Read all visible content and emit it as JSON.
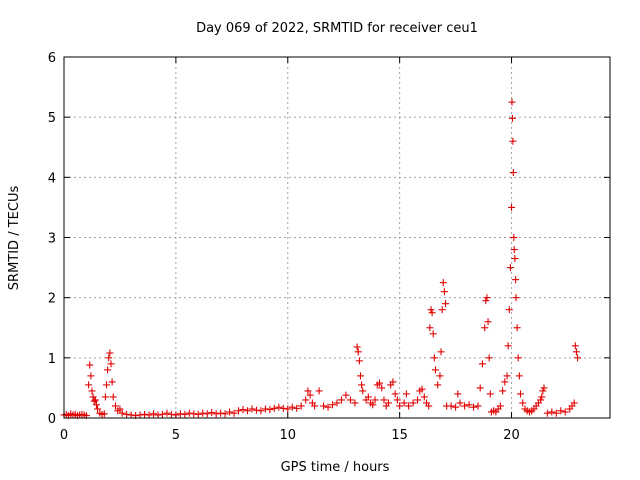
{
  "chart_data": {
    "type": "scatter",
    "title": "Day 069 of 2022, SRMTID for receiver ceu1",
    "xlabel": "GPS time / hours",
    "ylabel": "SRMTID / TECUs",
    "xlim": [
      0,
      24.4
    ],
    "ylim": [
      0,
      6
    ],
    "xticks": [
      0,
      5,
      10,
      15,
      20
    ],
    "yticks": [
      0,
      1,
      2,
      3,
      4,
      5,
      6
    ],
    "grid": true,
    "marker": "+",
    "color": "#e00000",
    "series": [
      {
        "name": "SRMTID ceu1",
        "points": [
          [
            0.0,
            0.05
          ],
          [
            0.1,
            0.06
          ],
          [
            0.2,
            0.04
          ],
          [
            0.3,
            0.07
          ],
          [
            0.4,
            0.05
          ],
          [
            0.5,
            0.06
          ],
          [
            0.6,
            0.04
          ],
          [
            0.7,
            0.05
          ],
          [
            0.8,
            0.06
          ],
          [
            0.9,
            0.05
          ],
          [
            1.0,
            0.04
          ],
          [
            1.1,
            0.55
          ],
          [
            1.15,
            0.88
          ],
          [
            1.2,
            0.7
          ],
          [
            1.25,
            0.45
          ],
          [
            1.3,
            0.35
          ],
          [
            1.35,
            0.28
          ],
          [
            1.4,
            0.3
          ],
          [
            1.45,
            0.22
          ],
          [
            1.5,
            0.15
          ],
          [
            1.6,
            0.08
          ],
          [
            1.7,
            0.06
          ],
          [
            1.8,
            0.07
          ],
          [
            1.85,
            0.35
          ],
          [
            1.9,
            0.55
          ],
          [
            1.95,
            0.8
          ],
          [
            2.0,
            1.0
          ],
          [
            2.05,
            1.08
          ],
          [
            2.1,
            0.9
          ],
          [
            2.15,
            0.6
          ],
          [
            2.2,
            0.35
          ],
          [
            2.3,
            0.2
          ],
          [
            2.4,
            0.12
          ],
          [
            2.5,
            0.15
          ],
          [
            2.6,
            0.08
          ],
          [
            2.8,
            0.06
          ],
          [
            3.0,
            0.05
          ],
          [
            3.2,
            0.04
          ],
          [
            3.4,
            0.05
          ],
          [
            3.6,
            0.06
          ],
          [
            3.8,
            0.05
          ],
          [
            4.0,
            0.07
          ],
          [
            4.2,
            0.05
          ],
          [
            4.4,
            0.06
          ],
          [
            4.6,
            0.08
          ],
          [
            4.8,
            0.06
          ],
          [
            5.0,
            0.05
          ],
          [
            5.2,
            0.07
          ],
          [
            5.4,
            0.06
          ],
          [
            5.6,
            0.08
          ],
          [
            5.8,
            0.07
          ],
          [
            6.0,
            0.06
          ],
          [
            6.2,
            0.08
          ],
          [
            6.4,
            0.07
          ],
          [
            6.6,
            0.09
          ],
          [
            6.8,
            0.07
          ],
          [
            7.0,
            0.08
          ],
          [
            7.2,
            0.07
          ],
          [
            7.4,
            0.1
          ],
          [
            7.6,
            0.08
          ],
          [
            7.8,
            0.12
          ],
          [
            8.0,
            0.14
          ],
          [
            8.2,
            0.12
          ],
          [
            8.4,
            0.15
          ],
          [
            8.6,
            0.13
          ],
          [
            8.8,
            0.12
          ],
          [
            9.0,
            0.15
          ],
          [
            9.2,
            0.14
          ],
          [
            9.4,
            0.16
          ],
          [
            9.6,
            0.18
          ],
          [
            9.8,
            0.16
          ],
          [
            10.0,
            0.15
          ],
          [
            10.2,
            0.18
          ],
          [
            10.4,
            0.16
          ],
          [
            10.6,
            0.2
          ],
          [
            10.8,
            0.3
          ],
          [
            10.9,
            0.45
          ],
          [
            11.0,
            0.38
          ],
          [
            11.1,
            0.25
          ],
          [
            11.2,
            0.2
          ],
          [
            11.4,
            0.45
          ],
          [
            11.6,
            0.2
          ],
          [
            11.8,
            0.18
          ],
          [
            12.0,
            0.22
          ],
          [
            12.2,
            0.25
          ],
          [
            12.4,
            0.3
          ],
          [
            12.6,
            0.38
          ],
          [
            12.8,
            0.3
          ],
          [
            13.0,
            0.25
          ],
          [
            13.1,
            1.18
          ],
          [
            13.15,
            1.1
          ],
          [
            13.2,
            0.95
          ],
          [
            13.25,
            0.7
          ],
          [
            13.3,
            0.55
          ],
          [
            13.35,
            0.45
          ],
          [
            13.5,
            0.3
          ],
          [
            13.6,
            0.35
          ],
          [
            13.7,
            0.25
          ],
          [
            13.8,
            0.22
          ],
          [
            13.9,
            0.3
          ],
          [
            14.0,
            0.55
          ],
          [
            14.1,
            0.58
          ],
          [
            14.2,
            0.5
          ],
          [
            14.3,
            0.3
          ],
          [
            14.4,
            0.2
          ],
          [
            14.5,
            0.25
          ],
          [
            14.6,
            0.55
          ],
          [
            14.7,
            0.6
          ],
          [
            14.8,
            0.4
          ],
          [
            14.9,
            0.3
          ],
          [
            15.0,
            0.2
          ],
          [
            15.2,
            0.25
          ],
          [
            15.3,
            0.4
          ],
          [
            15.4,
            0.2
          ],
          [
            15.6,
            0.25
          ],
          [
            15.8,
            0.3
          ],
          [
            15.9,
            0.45
          ],
          [
            16.0,
            0.48
          ],
          [
            16.1,
            0.35
          ],
          [
            16.2,
            0.25
          ],
          [
            16.3,
            0.2
          ],
          [
            16.35,
            1.5
          ],
          [
            16.4,
            1.8
          ],
          [
            16.45,
            1.75
          ],
          [
            16.5,
            1.4
          ],
          [
            16.55,
            1.0
          ],
          [
            16.6,
            0.8
          ],
          [
            16.7,
            0.55
          ],
          [
            16.8,
            0.7
          ],
          [
            16.85,
            1.1
          ],
          [
            16.9,
            1.8
          ],
          [
            16.95,
            2.25
          ],
          [
            17.0,
            2.1
          ],
          [
            17.05,
            1.9
          ],
          [
            17.1,
            0.2
          ],
          [
            17.3,
            0.2
          ],
          [
            17.5,
            0.18
          ],
          [
            17.6,
            0.4
          ],
          [
            17.7,
            0.25
          ],
          [
            17.9,
            0.2
          ],
          [
            18.1,
            0.22
          ],
          [
            18.3,
            0.18
          ],
          [
            18.5,
            0.2
          ],
          [
            18.6,
            0.5
          ],
          [
            18.7,
            0.9
          ],
          [
            18.8,
            1.5
          ],
          [
            18.85,
            1.95
          ],
          [
            18.9,
            2.0
          ],
          [
            18.95,
            1.6
          ],
          [
            19.0,
            1.0
          ],
          [
            19.05,
            0.4
          ],
          [
            19.1,
            0.1
          ],
          [
            19.2,
            0.12
          ],
          [
            19.3,
            0.1
          ],
          [
            19.4,
            0.15
          ],
          [
            19.5,
            0.2
          ],
          [
            19.6,
            0.45
          ],
          [
            19.7,
            0.6
          ],
          [
            19.8,
            0.7
          ],
          [
            19.85,
            1.2
          ],
          [
            19.9,
            1.8
          ],
          [
            19.95,
            2.5
          ],
          [
            20.0,
            3.5
          ],
          [
            20.02,
            5.25
          ],
          [
            20.04,
            4.98
          ],
          [
            20.06,
            4.6
          ],
          [
            20.08,
            4.08
          ],
          [
            20.1,
            3.0
          ],
          [
            20.12,
            2.8
          ],
          [
            20.15,
            2.65
          ],
          [
            20.18,
            2.3
          ],
          [
            20.2,
            2.0
          ],
          [
            20.25,
            1.5
          ],
          [
            20.3,
            1.0
          ],
          [
            20.35,
            0.7
          ],
          [
            20.4,
            0.4
          ],
          [
            20.5,
            0.25
          ],
          [
            20.6,
            0.15
          ],
          [
            20.7,
            0.12
          ],
          [
            20.8,
            0.1
          ],
          [
            20.9,
            0.12
          ],
          [
            21.0,
            0.15
          ],
          [
            21.1,
            0.2
          ],
          [
            21.2,
            0.25
          ],
          [
            21.3,
            0.3
          ],
          [
            21.35,
            0.35
          ],
          [
            21.4,
            0.45
          ],
          [
            21.45,
            0.5
          ],
          [
            21.6,
            0.08
          ],
          [
            21.8,
            0.1
          ],
          [
            22.0,
            0.08
          ],
          [
            22.2,
            0.12
          ],
          [
            22.4,
            0.1
          ],
          [
            22.6,
            0.15
          ],
          [
            22.7,
            0.2
          ],
          [
            22.8,
            0.25
          ],
          [
            22.85,
            1.2
          ],
          [
            22.9,
            1.1
          ],
          [
            22.95,
            1.0
          ]
        ]
      }
    ]
  }
}
